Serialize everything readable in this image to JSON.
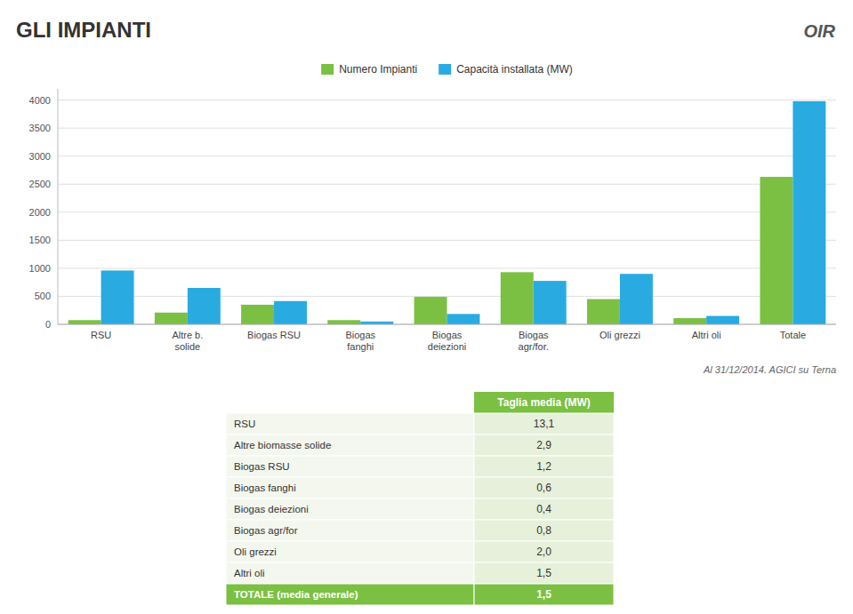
{
  "chart_data": [
    {
      "type": "bar",
      "title": "GLI IMPIANTI",
      "subtitle": "Al 31/12/2014. AGICI su Terna",
      "annotations": [
        "OIR"
      ],
      "categories": [
        "RSU",
        "Altre b.\nsolide",
        "Biogas RSU",
        "Biogas\nfanghi",
        "Biogas\ndeiezioni",
        "Biogas\nagr/for.",
        "Oli grezzi",
        "Altri oli",
        "Totale"
      ],
      "series": [
        {
          "name": "Numero Impianti",
          "color": "#7bc043",
          "values": [
            75,
            210,
            350,
            75,
            490,
            930,
            450,
            110,
            2630
          ]
        },
        {
          "name": "Capacità installata (MW)",
          "color": "#29abe2",
          "values": [
            960,
            650,
            415,
            50,
            185,
            775,
            900,
            150,
            3980
          ]
        }
      ],
      "ylim": [
        0,
        4200
      ],
      "yticks": [
        0,
        500,
        1000,
        1500,
        2000,
        2500,
        3000,
        3500,
        4000
      ],
      "grid": true,
      "legend": "top"
    },
    {
      "type": "table",
      "title": "Taglia media (MW)",
      "categories": [
        "RSU",
        "Altre biomasse solide",
        "Biogas RSU",
        "Biogas fanghi",
        "Biogas deiezioni",
        "Biogas agr/for",
        "Oli grezzi",
        "Altri oli",
        "TOTALE (media generale)"
      ],
      "values": [
        13.1,
        2.9,
        1.2,
        0.6,
        0.4,
        0.8,
        2.0,
        1.5,
        1.5
      ],
      "value_labels": [
        "13,1",
        "2,9",
        "1,2",
        "0,6",
        "0,4",
        "0,8",
        "2,0",
        "1,5",
        "1,5"
      ],
      "color": "#7bc043"
    }
  ]
}
